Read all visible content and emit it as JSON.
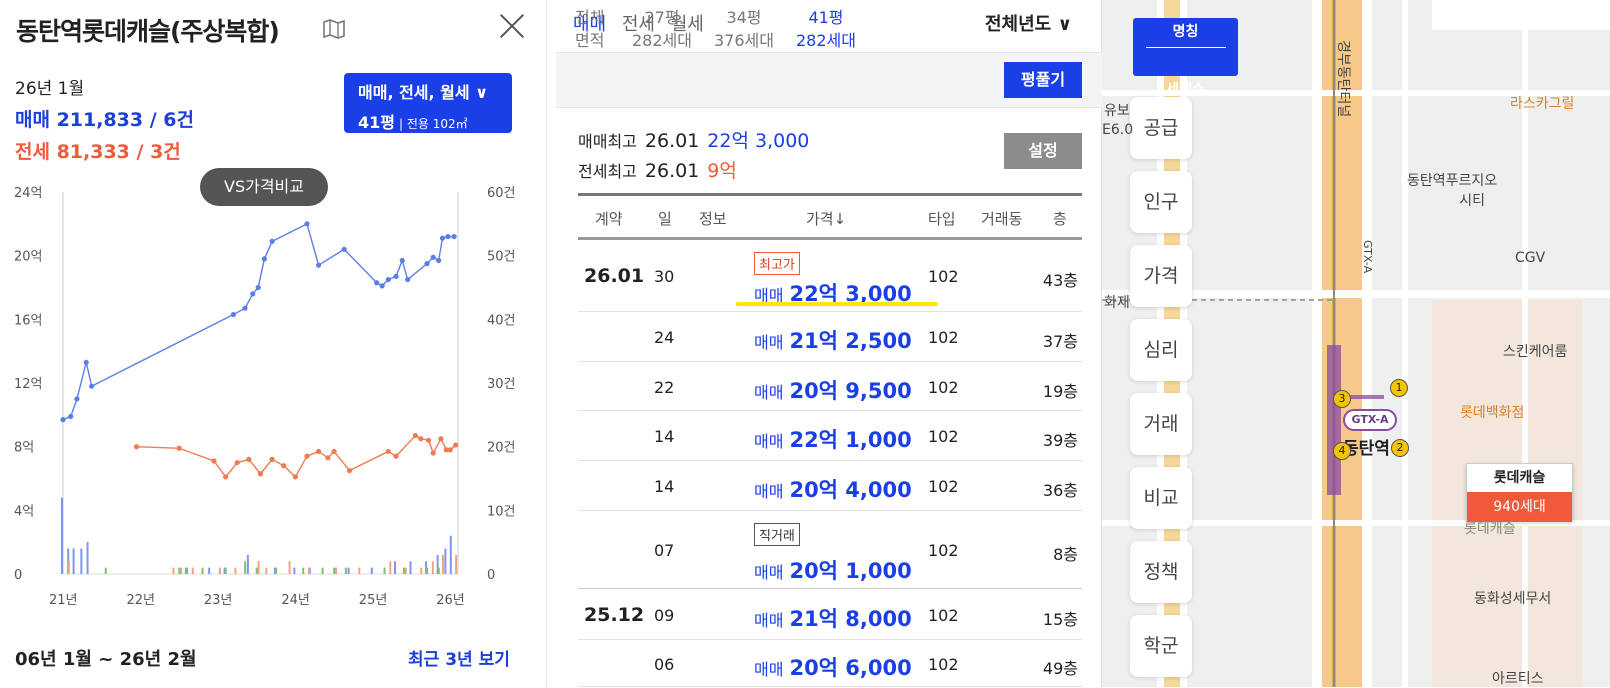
{
  "left": {
    "title": "동탄역롯데캐슬(주상복합)",
    "date": "26년 1월",
    "sale_summary": "매매 211,833 / 6건",
    "jeonse_summary": "전세 81,333 / 3건",
    "filter_line1": "매매, 전세, 월세 ∨",
    "filter_line2": "41평",
    "filter_area": "| 전용 102㎡",
    "vs_button": "VS가격비교",
    "period": "06년 1월 ~ 26년 2월",
    "recent_link": "최근 3년 보기"
  },
  "chart_data": {
    "type": "line",
    "x_ticks": [
      "21년",
      "22년",
      "23년",
      "24년",
      "25년",
      "26년"
    ],
    "y_left_ticks": [
      "24억",
      "20억",
      "16억",
      "12억",
      "8억",
      "4억",
      "0"
    ],
    "y_right_ticks": [
      "60건",
      "50건",
      "40건",
      "30건",
      "20건",
      "10건",
      "0"
    ],
    "y_left_range": [
      0,
      24
    ],
    "y_right_range": [
      0,
      60
    ],
    "x_range": [
      2021.0,
      2026.1
    ],
    "grid": false,
    "series": [
      {
        "kind": "sale_price",
        "color": "#5b7fe8",
        "points": [
          [
            2021.0,
            9.7
          ],
          [
            2021.1,
            9.9
          ],
          [
            2021.18,
            11.0
          ],
          [
            2021.3,
            13.3
          ],
          [
            2021.37,
            11.8
          ],
          [
            2023.2,
            16.3
          ],
          [
            2023.35,
            16.7
          ],
          [
            2023.45,
            17.6
          ],
          [
            2023.52,
            18.0
          ],
          [
            2023.6,
            19.8
          ],
          [
            2023.7,
            20.9
          ],
          [
            2024.15,
            22.0
          ],
          [
            2024.3,
            19.4
          ],
          [
            2024.63,
            20.4
          ],
          [
            2025.05,
            18.3
          ],
          [
            2025.12,
            18.1
          ],
          [
            2025.2,
            18.5
          ],
          [
            2025.3,
            18.7
          ],
          [
            2025.38,
            19.7
          ],
          [
            2025.45,
            18.5
          ],
          [
            2025.7,
            19.5
          ],
          [
            2025.78,
            19.9
          ],
          [
            2025.85,
            19.7
          ],
          [
            2025.9,
            21.1
          ],
          [
            2025.97,
            21.2
          ],
          [
            2026.05,
            21.2
          ]
        ]
      },
      {
        "kind": "jeonse_price",
        "color": "#f07b52",
        "points": [
          [
            2021.95,
            8.0
          ],
          [
            2022.5,
            7.9
          ],
          [
            2022.95,
            7.1
          ],
          [
            2023.1,
            6.1
          ],
          [
            2023.25,
            7.0
          ],
          [
            2023.4,
            7.2
          ],
          [
            2023.55,
            6.3
          ],
          [
            2023.7,
            7.2
          ],
          [
            2023.85,
            6.8
          ],
          [
            2024.0,
            6.1
          ],
          [
            2024.15,
            7.4
          ],
          [
            2024.3,
            7.7
          ],
          [
            2024.42,
            7.3
          ],
          [
            2024.5,
            7.7
          ],
          [
            2024.7,
            6.5
          ],
          [
            2025.2,
            7.7
          ],
          [
            2025.3,
            7.4
          ],
          [
            2025.55,
            8.7
          ],
          [
            2025.62,
            8.5
          ],
          [
            2025.72,
            8.4
          ],
          [
            2025.78,
            7.6
          ],
          [
            2025.88,
            8.5
          ],
          [
            2025.95,
            7.8
          ],
          [
            2026.0,
            7.8
          ],
          [
            2026.07,
            8.1
          ]
        ]
      }
    ],
    "volume_bars": {
      "sale_color": "#7f96ef",
      "jeonse_color": "#f2a27f",
      "monthly_color": "#7dc46a",
      "sale": [
        [
          2021.0,
          12
        ],
        [
          2021.08,
          4
        ],
        [
          2021.15,
          4
        ],
        [
          2021.25,
          4
        ],
        [
          2021.33,
          5
        ],
        [
          2022.6,
          1
        ],
        [
          2022.9,
          1
        ],
        [
          2023.1,
          1
        ],
        [
          2023.4,
          3
        ],
        [
          2023.75,
          1
        ],
        [
          2024.0,
          1
        ],
        [
          2024.2,
          1
        ],
        [
          2024.7,
          1
        ],
        [
          2025.0,
          1
        ],
        [
          2025.3,
          2
        ],
        [
          2025.5,
          2
        ],
        [
          2025.7,
          2
        ],
        [
          2025.85,
          3
        ],
        [
          2025.95,
          4
        ],
        [
          2026.02,
          6
        ]
      ],
      "jeonse": [
        [
          2021.05,
          2
        ],
        [
          2022.4,
          1
        ],
        [
          2022.5,
          1
        ],
        [
          2022.65,
          1
        ],
        [
          2023.0,
          1
        ],
        [
          2023.2,
          1
        ],
        [
          2023.5,
          2
        ],
        [
          2023.6,
          1
        ],
        [
          2023.9,
          2
        ],
        [
          2024.15,
          1
        ],
        [
          2024.5,
          1
        ],
        [
          2024.8,
          1
        ],
        [
          2025.2,
          2
        ],
        [
          2025.4,
          1
        ],
        [
          2025.6,
          1
        ],
        [
          2025.75,
          2
        ],
        [
          2025.88,
          3
        ],
        [
          2026.05,
          3
        ]
      ],
      "monthly": [
        [
          2021.5,
          1
        ],
        [
          2022.45,
          1
        ],
        [
          2022.55,
          1
        ],
        [
          2022.75,
          1
        ],
        [
          2023.05,
          1
        ],
        [
          2023.3,
          2
        ],
        [
          2023.45,
          1
        ],
        [
          2023.7,
          1
        ],
        [
          2024.05,
          1
        ],
        [
          2024.3,
          1
        ],
        [
          2024.45,
          1
        ],
        [
          2024.6,
          1
        ],
        [
          2025.1,
          1
        ],
        [
          2025.35,
          1
        ],
        [
          2025.65,
          1
        ],
        [
          2025.8,
          1
        ]
      ]
    }
  },
  "mid": {
    "tabs": [
      "매매",
      "전세",
      "월세"
    ],
    "year_filter": "전체년도 ∨",
    "size_headers": {
      "top": "전체",
      "bottom": "면적"
    },
    "sizes": [
      {
        "top": "27평",
        "bottom": "282세대"
      },
      {
        "top": "34평",
        "bottom": "376세대"
      },
      {
        "top": "41평",
        "bottom": "282세대"
      }
    ],
    "pyeong_button": "평풀기",
    "max_sale_label": "매매최고",
    "max_sale_date": "26.01",
    "max_sale_price": "22억 3,000",
    "max_jeonse_label": "전세최고",
    "max_jeonse_date": "26.01",
    "max_jeonse_price": "9억",
    "setting_button": "설정",
    "headers": [
      "계약",
      "일",
      "정보",
      "가격↓",
      "타입",
      "거래동",
      "층"
    ],
    "rows": [
      {
        "month": "26.01",
        "day": "30",
        "tag": "최고가",
        "kind": "매매",
        "price": "22억 3,000",
        "type": "102",
        "floor": "43층"
      },
      {
        "month": "",
        "day": "24",
        "tag": "",
        "kind": "매매",
        "price": "21억 2,500",
        "type": "102",
        "floor": "37층"
      },
      {
        "month": "",
        "day": "22",
        "tag": "",
        "kind": "매매",
        "price": "20억 9,500",
        "type": "102",
        "floor": "19층"
      },
      {
        "month": "",
        "day": "14",
        "tag": "",
        "kind": "매매",
        "price": "22억 1,000",
        "type": "102",
        "floor": "39층"
      },
      {
        "month": "",
        "day": "14",
        "tag": "",
        "kind": "매매",
        "price": "20억 4,000",
        "type": "102",
        "floor": "36층"
      },
      {
        "month": "",
        "day": "07",
        "tag": "직거래",
        "kind": "매매",
        "price": "20억 1,000",
        "type": "102",
        "floor": "8층"
      },
      {
        "month": "25.12",
        "day": "09",
        "tag": "",
        "kind": "매매",
        "price": "21억 8,000",
        "type": "102",
        "floor": "15층"
      },
      {
        "month": "",
        "day": "06",
        "tag": "",
        "kind": "매매",
        "price": "20억 6,000",
        "type": "102",
        "floor": "49층"
      }
    ]
  },
  "map": {
    "name_flag_top": "명칭",
    "name_flag_bottom": "세대수",
    "side_buttons": [
      "공급",
      "인구",
      "가격",
      "심리",
      "거래",
      "비교",
      "정책",
      "학군"
    ],
    "labels": {
      "road": "경부동탄터널",
      "gtx_line": "GTX-A",
      "rascal": "라스카그릴",
      "prugio_line1": "동탄역푸르지오",
      "prugio_line2": "시티",
      "cgv": "CGV",
      "skin": "스킨케어룸",
      "lotte_dept": "롯데백화점",
      "dongwha": "동화성세무서",
      "artis": "아르티스",
      "station": "동탄역",
      "gtx_badge": "GTX-A",
      "edge1": "유보",
      "edge2": "E6.0",
      "edge3": "화재",
      "lotte_under": "롯데캐슬"
    },
    "marker_name": "롯데캐슬",
    "marker_units": "940세대"
  }
}
